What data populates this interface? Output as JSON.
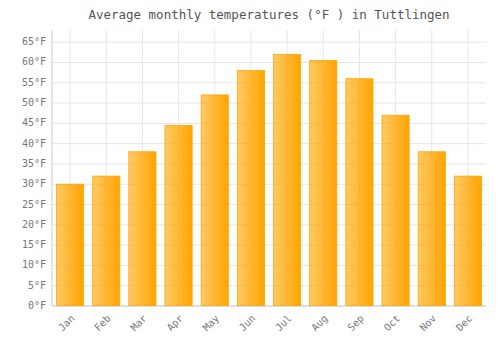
{
  "chart_data": {
    "type": "bar",
    "title": "Average monthly temperatures (°F ) in Tuttlingen",
    "categories": [
      "Jan",
      "Feb",
      "Mar",
      "Apr",
      "May",
      "Jun",
      "Jul",
      "Aug",
      "Sep",
      "Oct",
      "Nov",
      "Dec"
    ],
    "values": [
      30,
      32,
      38,
      44.5,
      52,
      58,
      62,
      60.5,
      56,
      47,
      38,
      32
    ],
    "color": "#FFA500",
    "ylim": [
      0,
      68
    ],
    "yticks": [
      {
        "value": 0,
        "label": "0°F"
      },
      {
        "value": 5,
        "label": "5°F"
      },
      {
        "value": 10,
        "label": "10°F"
      },
      {
        "value": 15,
        "label": "15°F"
      },
      {
        "value": 20,
        "label": "20°F"
      },
      {
        "value": 25,
        "label": "25°F"
      },
      {
        "value": 30,
        "label": "30°F"
      },
      {
        "value": 35,
        "label": "35°F"
      },
      {
        "value": 40,
        "label": "40°F"
      },
      {
        "value": 45,
        "label": "45°F"
      },
      {
        "value": 50,
        "label": "50°F"
      },
      {
        "value": 55,
        "label": "55°F"
      },
      {
        "value": 60,
        "label": "60°F"
      },
      {
        "value": 65,
        "label": "65°F"
      }
    ],
    "grid": true
  }
}
